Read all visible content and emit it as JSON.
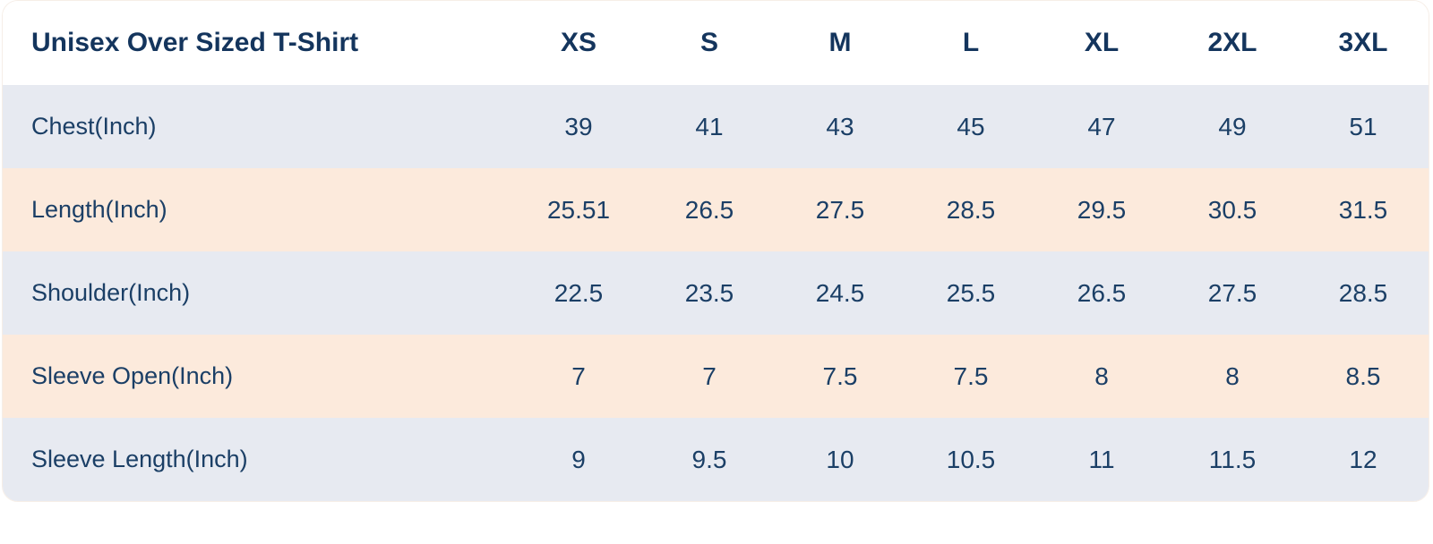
{
  "chart_data": {
    "type": "table",
    "title": "Unisex Over Sized T-Shirt",
    "columns": [
      "Unisex Over Sized T-Shirt",
      "XS",
      "S",
      "M",
      "L",
      "XL",
      "2XL",
      "3XL"
    ],
    "rows": [
      [
        "Chest(Inch)",
        39,
        41,
        43,
        45,
        47,
        49,
        51
      ],
      [
        "Length(Inch)",
        25.51,
        26.5,
        27.5,
        28.5,
        29.5,
        30.5,
        31.5
      ],
      [
        "Shoulder(Inch)",
        22.5,
        23.5,
        24.5,
        25.5,
        26.5,
        27.5,
        28.5
      ],
      [
        "Sleeve Open(Inch)",
        7,
        7,
        7.5,
        7.5,
        8,
        8,
        8.5
      ],
      [
        "Sleeve Length(Inch)",
        9,
        9.5,
        10,
        10.5,
        11,
        11.5,
        12
      ]
    ],
    "layout_hints": {
      "header_background": "#ffffff",
      "row_alt_colors": [
        "#fceadc",
        "#e7eaf1"
      ],
      "grid": false,
      "first_column_align": "left",
      "value_columns_align": "center"
    }
  },
  "colors": {
    "text_navy": "#1b3f66",
    "header_navy": "#14355d",
    "row_peach": "#fceadc",
    "row_blue_gray": "#e7eaf1",
    "card_border": "#f6eee7",
    "background": "#ffffff"
  }
}
